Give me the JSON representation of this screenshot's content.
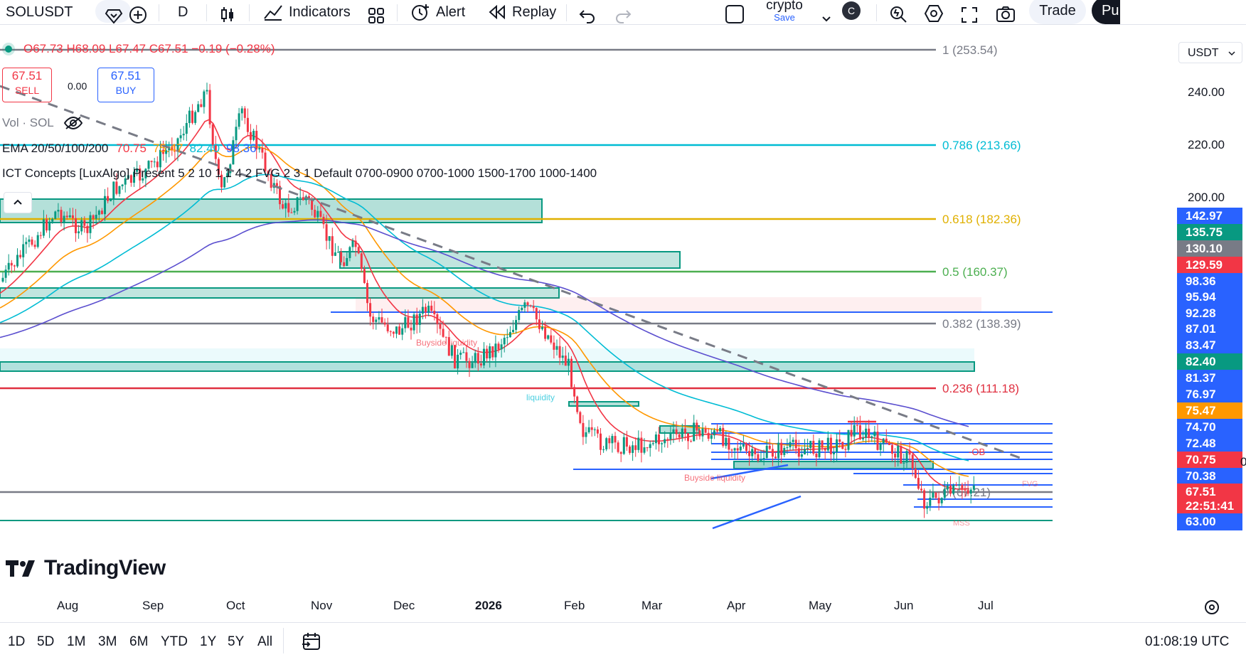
{
  "toolbar": {
    "symbol": "SOLUSDT",
    "interval": "D",
    "indicators": "Indicators",
    "alert": "Alert",
    "replay": "Replay",
    "layout_name": "crypto",
    "layout_save": "Save",
    "avatar_letter": "C",
    "trade": "Trade",
    "publish": "Pu"
  },
  "legend": {
    "ohlc": "O67.73 H68.09 L67.47 C67.51 −0.19 (−0.28%)",
    "sell_price": "67.51",
    "sell_label": "SELL",
    "spread": "0.00",
    "buy_price": "67.51",
    "buy_label": "BUY",
    "volume": "Vol · SOL",
    "ema_label": "EMA 20/50/100/200",
    "ema_values": [
      "70.75",
      "75.47",
      "82.40",
      "98.36"
    ],
    "ict": "ICT Concepts [LuxAlgo] Present 5 2 10 1 1 4 2 FVG 2 3 1 Default 0700-0900 0700-1000 1500-1700 1000-1400"
  },
  "fib": [
    {
      "label": "1 (253.54)",
      "color": "#787b86"
    },
    {
      "label": "0.786 (213.66)",
      "color": "#00bcd4"
    },
    {
      "label": "0.618 (182.36)",
      "color": "#e0b000"
    },
    {
      "label": "0.5 (160.37)",
      "color": "#4caf50"
    },
    {
      "label": "0.382 (138.39)",
      "color": "#787b86"
    },
    {
      "label": "0.236 (111.18)",
      "color": "#e03040"
    },
    {
      "label": "0 (67.21)",
      "color": "#787b86"
    }
  ],
  "annotations": {
    "buyside1": "Buyside liquidity",
    "buyside2": "Buyside liquidity",
    "liquidity": "liquidity",
    "ob": "-OB",
    "fvg": "FVG",
    "mss": "MSS",
    "watermark": "TradingView"
  },
  "price_axis": {
    "currency": "USDT",
    "ticks": [
      "240.00",
      "220.00",
      "200.00"
    ],
    "labels": [
      {
        "text": "142.97",
        "color": "#2962ff"
      },
      {
        "text": "135.75",
        "color": "#089981"
      },
      {
        "text": "130.10",
        "color": "#787b86"
      },
      {
        "text": "129.59",
        "color": "#f23645"
      },
      {
        "text": "98.36",
        "color": "#2962ff"
      },
      {
        "text": "95.94",
        "color": "#2962ff"
      },
      {
        "text": "92.28",
        "color": "#2962ff"
      },
      {
        "text": "87.01",
        "color": "#2962ff"
      },
      {
        "text": "83.47",
        "color": "#2962ff"
      },
      {
        "text": "82.40",
        "color": "#089981"
      },
      {
        "text": "81.37",
        "color": "#2962ff"
      },
      {
        "text": "76.97",
        "color": "#2962ff"
      },
      {
        "text": "75.47",
        "color": "#ff9800"
      },
      {
        "text": "74.70",
        "color": "#2962ff"
      },
      {
        "text": "72.48",
        "color": "#2962ff"
      },
      {
        "text": "70.75",
        "color": "#f23645"
      },
      {
        "text": "70.38",
        "color": "#2962ff"
      },
      {
        "text": "67.51",
        "color": "#f23645"
      },
      {
        "text": "22:51:41",
        "color": "#f23645"
      },
      {
        "text": "63.00",
        "color": "#2962ff"
      }
    ],
    "tail": "0"
  },
  "time_axis": [
    "Aug",
    "Sep",
    "Oct",
    "Nov",
    "Dec",
    "2026",
    "Feb",
    "Mar",
    "Apr",
    "May",
    "Jun",
    "Jul"
  ],
  "bottom": {
    "ranges": [
      "1D",
      "5D",
      "1M",
      "3M",
      "6M",
      "YTD",
      "1Y",
      "5Y",
      "All"
    ],
    "clock": "01:08:19 UTC"
  },
  "colors": {
    "up": "#089981",
    "down": "#f23645",
    "ema20": "#f23645",
    "ema50": "#ff9800",
    "ema100": "#00bcd4",
    "ema200": "#5b4fcf",
    "ob": "#089981"
  }
}
